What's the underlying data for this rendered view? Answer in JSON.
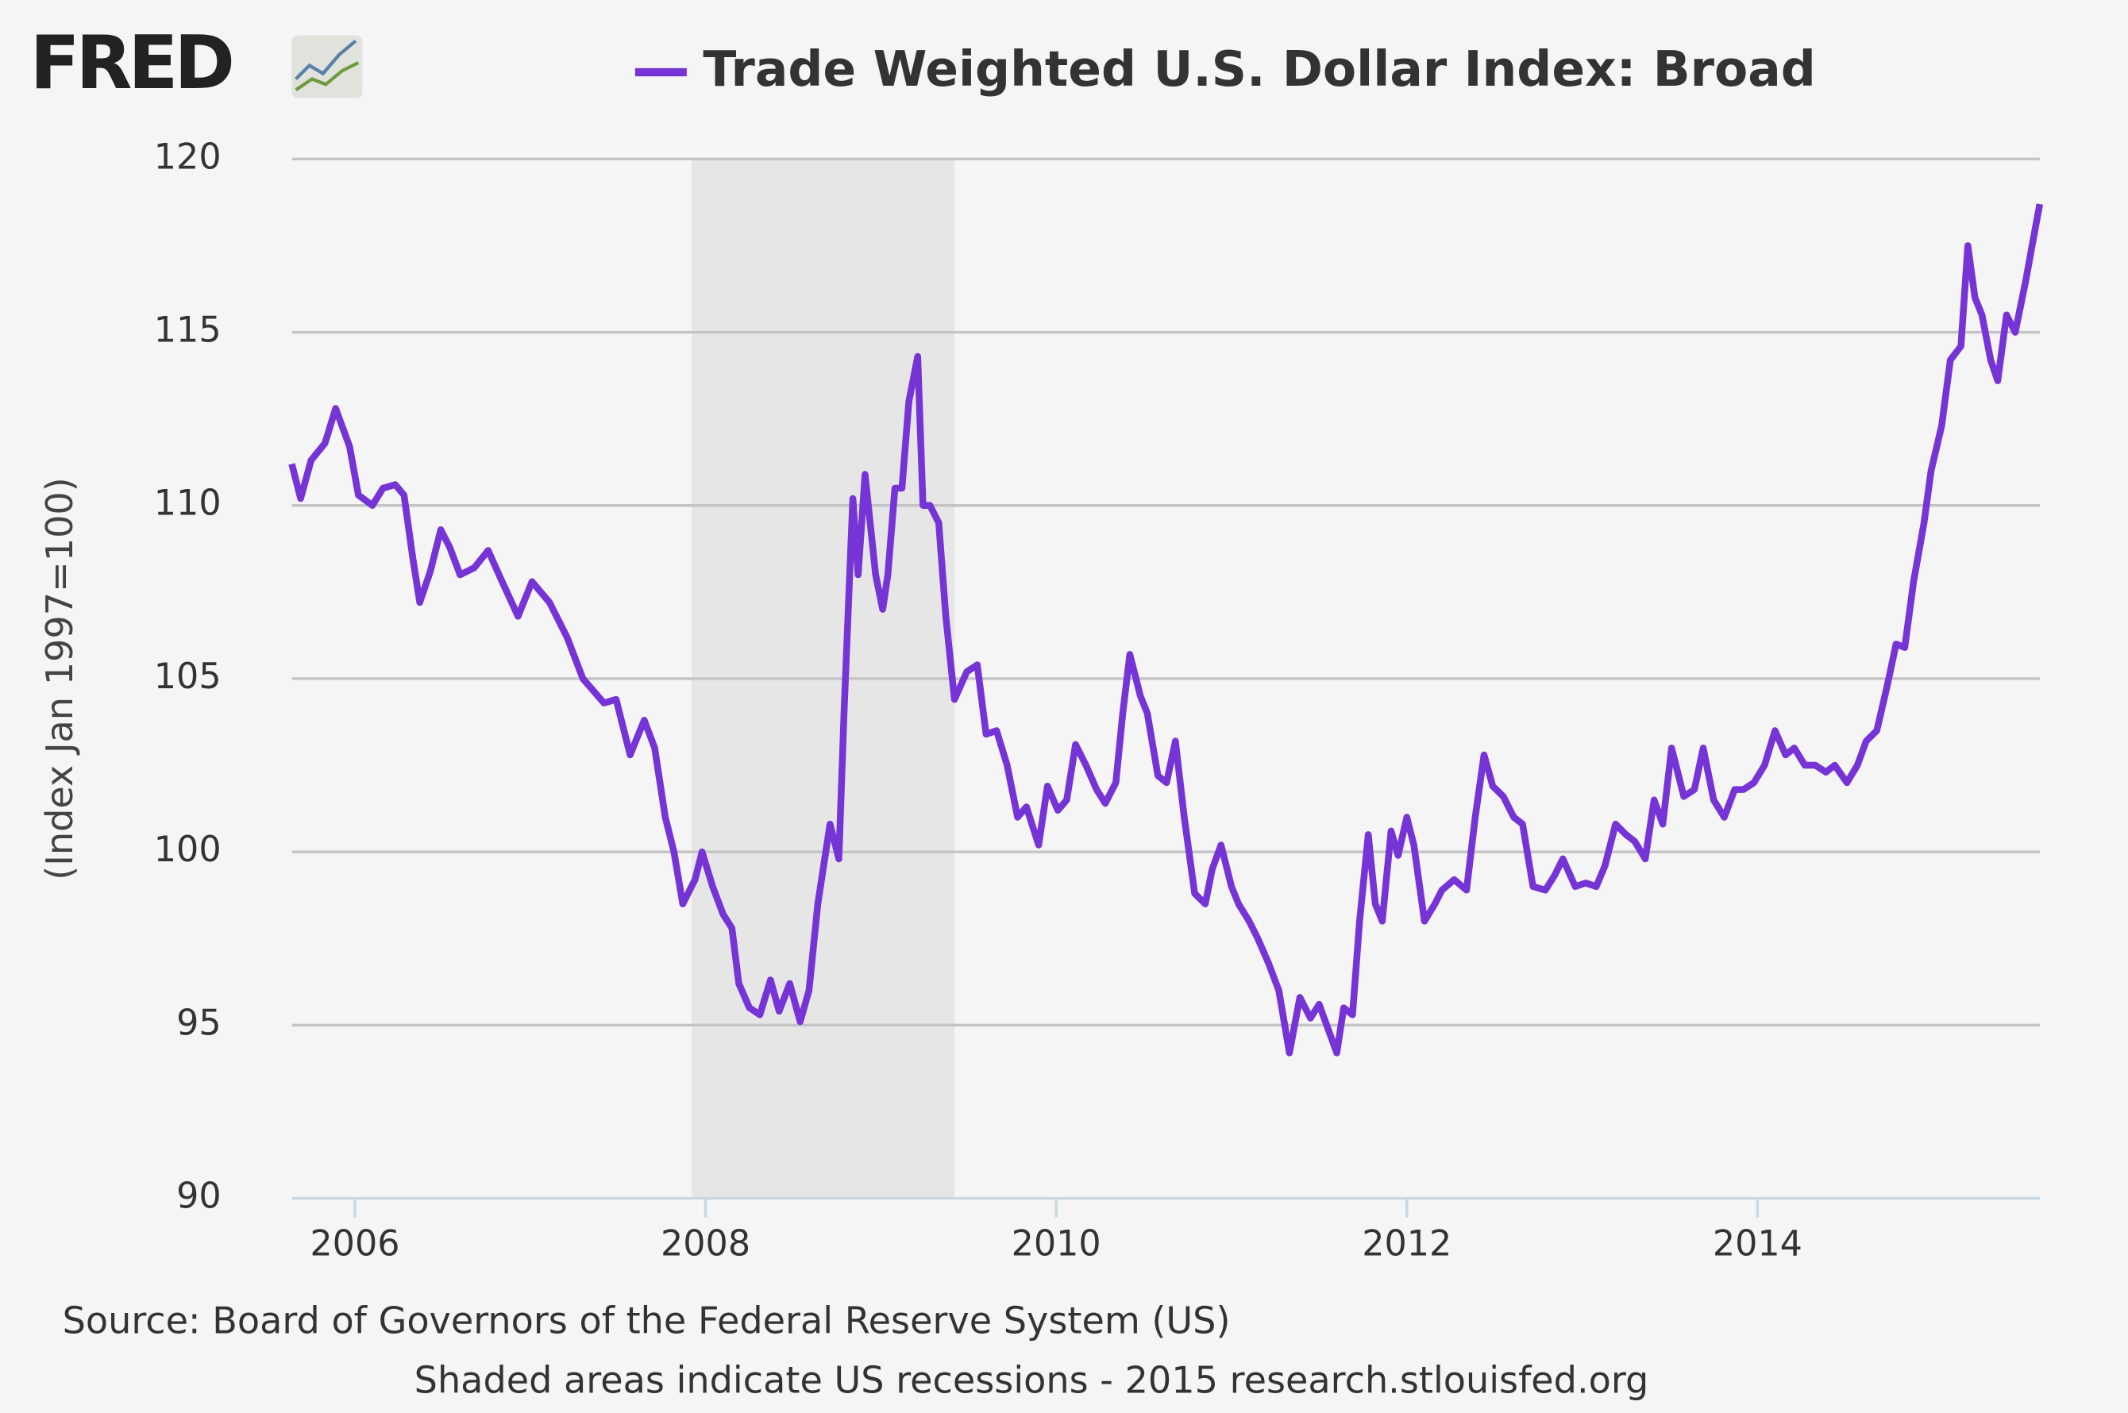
{
  "logo": "FRED",
  "chart_data": {
    "type": "line",
    "title": "Trade Weighted U.S. Dollar Index: Broad",
    "y_label": "(Index Jan 1997=100)",
    "source": "Source: Board of Governors of the Federal Reserve System (US)",
    "note": "Shaded areas indicate US recessions - 2015 research.stlouisfed.org",
    "xlim": [
      2005.64,
      2015.61
    ],
    "xticks": [
      2006,
      2008,
      2010,
      2012,
      2014
    ],
    "ylim": [
      90,
      120
    ],
    "yticks": [
      90,
      95,
      100,
      105,
      110,
      115,
      120
    ],
    "grid": true,
    "shaded_periods": [
      {
        "start": 2007.92,
        "end": 2009.42
      }
    ],
    "x": [
      2005.64,
      2005.69,
      2005.75,
      2005.83,
      2005.89,
      2005.97,
      2006.02,
      2006.1,
      2006.16,
      2006.23,
      2006.28,
      2006.33,
      2006.37,
      2006.43,
      2006.49,
      2006.54,
      2006.6,
      2006.68,
      2006.76,
      2006.84,
      2006.93,
      2007.01,
      2007.11,
      2007.21,
      2007.3,
      2007.42,
      2007.49,
      2007.57,
      2007.65,
      2007.71,
      2007.77,
      2007.82,
      2007.87,
      2007.94,
      2007.98,
      2008.04,
      2008.1,
      2008.15,
      2008.19,
      2008.25,
      2008.31,
      2008.37,
      2008.42,
      2008.48,
      2008.54,
      2008.59,
      2008.64,
      2008.71,
      2008.76,
      2008.79,
      2008.84,
      2008.87,
      2008.91,
      2008.97,
      2009.01,
      2009.04,
      2009.08,
      2009.12,
      2009.16,
      2009.21,
      2009.24,
      2009.28,
      2009.33,
      2009.37,
      2009.42,
      2009.49,
      2009.55,
      2009.6,
      2009.66,
      2009.72,
      2009.78,
      2009.83,
      2009.9,
      2009.95,
      2010.01,
      2010.06,
      2010.11,
      2010.17,
      2010.23,
      2010.28,
      2010.34,
      2010.38,
      2010.42,
      2010.48,
      2010.52,
      2010.58,
      2010.63,
      2010.68,
      2010.73,
      2010.79,
      2010.85,
      2010.89,
      2010.94,
      2011.0,
      2011.04,
      2011.1,
      2011.15,
      2011.21,
      2011.27,
      2011.33,
      2011.39,
      2011.45,
      2011.5,
      2011.55,
      2011.6,
      2011.64,
      2011.69,
      2011.73,
      2011.78,
      2011.82,
      2011.86,
      2011.91,
      2011.95,
      2012.0,
      2012.04,
      2012.1,
      2012.16,
      2012.2,
      2012.27,
      2012.34,
      2012.39,
      2012.44,
      2012.49,
      2012.55,
      2012.61,
      2012.66,
      2012.72,
      2012.79,
      2012.84,
      2012.89,
      2012.96,
      2013.02,
      2013.08,
      2013.13,
      2013.19,
      2013.25,
      2013.3,
      2013.36,
      2013.41,
      2013.46,
      2013.51,
      2013.58,
      2013.64,
      2013.69,
      2013.75,
      2013.81,
      2013.87,
      2013.92,
      2013.98,
      2014.04,
      2014.1,
      2014.16,
      2014.21,
      2014.27,
      2014.33,
      2014.39,
      2014.44,
      2014.51,
      2014.57,
      2014.62,
      2014.68,
      2014.74,
      2014.79,
      2014.84,
      2014.89,
      2014.95,
      2014.99,
      2015.05,
      2015.1,
      2015.16,
      2015.2,
      2015.24,
      2015.28,
      2015.33,
      2015.37,
      2015.42,
      2015.47,
      2015.53,
      2015.57,
      2015.61
    ],
    "series": [
      {
        "name": "Trade Weighted U.S. Dollar Index: Broad",
        "color": "#7634d6",
        "values": [
          111.2,
          110.2,
          111.3,
          111.8,
          112.8,
          111.7,
          110.3,
          110.0,
          110.5,
          110.6,
          110.3,
          108.5,
          107.2,
          108.1,
          109.3,
          108.8,
          108.0,
          108.2,
          108.7,
          107.8,
          106.8,
          107.8,
          107.2,
          106.2,
          105.0,
          104.3,
          104.4,
          102.8,
          103.8,
          103.0,
          101.0,
          100.0,
          98.5,
          99.2,
          100.0,
          99.0,
          98.2,
          97.8,
          96.2,
          95.5,
          95.3,
          96.3,
          95.4,
          96.2,
          95.1,
          96.0,
          98.5,
          100.8,
          99.8,
          104.0,
          110.2,
          108.0,
          110.9,
          108.0,
          107.0,
          108.0,
          110.5,
          110.5,
          113.0,
          114.3,
          110.0,
          110.0,
          109.5,
          106.8,
          104.4,
          105.2,
          105.4,
          103.4,
          103.5,
          102.5,
          101.0,
          101.3,
          100.2,
          101.9,
          101.2,
          101.5,
          103.1,
          102.5,
          101.8,
          101.4,
          102.0,
          104.0,
          105.7,
          104.5,
          104.0,
          102.2,
          102.0,
          103.2,
          101.0,
          98.8,
          98.5,
          99.5,
          100.2,
          99.0,
          98.5,
          98.0,
          97.5,
          96.8,
          96.0,
          94.2,
          95.8,
          95.2,
          95.6,
          94.9,
          94.2,
          95.5,
          95.3,
          98.0,
          100.5,
          98.5,
          98.0,
          100.6,
          99.9,
          101.0,
          100.2,
          98.0,
          98.5,
          98.9,
          99.2,
          98.9,
          101.0,
          102.8,
          101.9,
          101.6,
          101.0,
          100.8,
          99.0,
          98.9,
          99.3,
          99.8,
          99.0,
          99.1,
          99.0,
          99.6,
          100.8,
          100.5,
          100.3,
          99.8,
          101.5,
          100.8,
          103.0,
          101.6,
          101.8,
          103.0,
          101.5,
          101.0,
          101.8,
          101.8,
          102.0,
          102.5,
          103.5,
          102.8,
          103.0,
          102.5,
          102.5,
          102.3,
          102.5,
          102.0,
          102.5,
          103.2,
          103.5,
          104.8,
          106.0,
          105.9,
          107.8,
          109.5,
          111.0,
          112.3,
          114.2,
          114.6,
          117.5,
          116.0,
          115.5,
          114.2,
          113.6,
          115.5,
          115.0,
          116.5,
          117.6,
          118.7
        ]
      }
    ]
  }
}
